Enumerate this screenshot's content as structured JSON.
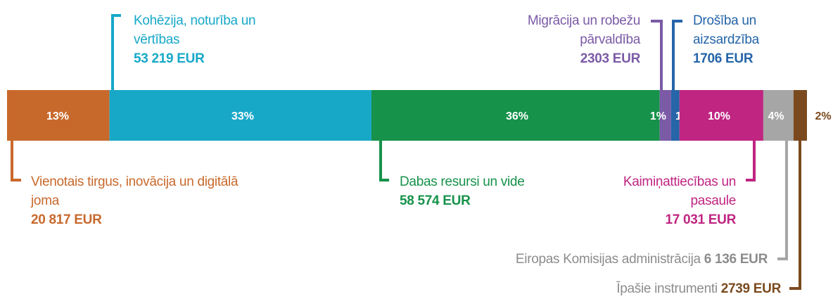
{
  "chart_data": {
    "type": "stacked-bar",
    "categories": [
      "Vienotais tirgus, inovācija un digitālā joma",
      "Kohēzija, noturība un vērtības",
      "Dabas resursi un vide",
      "Migrācija un robežu pārvaldība",
      "Drošība un aizsardzība",
      "Kaimiņattiecības un pasaule",
      "Eiropas Komisijas administrācija",
      "Īpašie instrumenti"
    ],
    "values": [
      20817,
      53219,
      58574,
      2303,
      1706,
      17031,
      6136,
      2739
    ],
    "value_labels": [
      "20 817 EUR",
      "53 219 EUR",
      "58 574 EUR",
      "2303 EUR",
      "1706 EUR",
      "17 031 EUR",
      "6 136 EUR",
      "2739 EUR"
    ],
    "percent_labels": [
      "13%",
      "33%",
      "36%",
      "1%",
      "1%",
      "10%",
      "4%",
      "2%"
    ],
    "colors": [
      "#c8692c",
      "#17a8c8",
      "#16924a",
      "#7b5aa6",
      "#2565a8",
      "#bf2581",
      "#a6a6a6",
      "#7a4a1e"
    ]
  }
}
